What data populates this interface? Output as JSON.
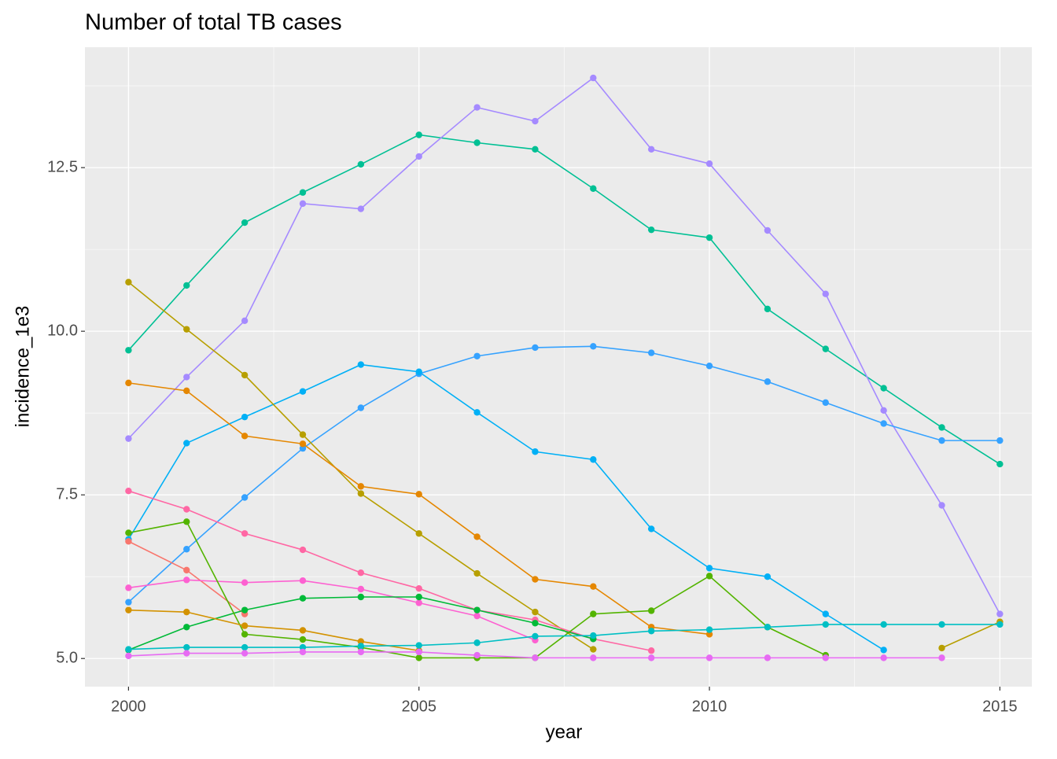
{
  "chart_data": {
    "type": "line",
    "title": "Number of total TB cases",
    "x_label": "year",
    "y_label": "incidence_1e3",
    "x": [
      2000,
      2001,
      2002,
      2003,
      2004,
      2005,
      2006,
      2007,
      2008,
      2009,
      2010,
      2011,
      2012,
      2013,
      2014,
      2015
    ],
    "xlim": [
      1999.25,
      2015.55
    ],
    "xticks": [
      2000,
      2005,
      2010,
      2015
    ],
    "ylim": [
      4.57,
      14.34
    ],
    "yticks": [
      {
        "value": 5,
        "label": "5.0"
      },
      7.5,
      {
        "value": 10,
        "label": "10.0"
      },
      12.5
    ],
    "grid": true,
    "series": [
      {
        "color": "#00C094",
        "values": [
          9.71,
          10.7,
          11.66,
          12.12,
          12.55,
          13.0,
          12.88,
          12.78,
          12.18,
          11.55,
          11.43,
          10.34,
          9.73,
          9.13,
          8.53,
          7.97
        ]
      },
      {
        "color": "#A58AFF",
        "values": [
          8.36,
          9.3,
          10.16,
          11.95,
          11.87,
          12.67,
          13.42,
          13.21,
          13.87,
          12.78,
          12.56,
          11.54,
          10.57,
          8.79,
          7.34,
          5.68
        ]
      },
      {
        "color": "#35A2FF",
        "values": [
          5.86,
          6.67,
          7.46,
          8.21,
          8.83,
          9.35,
          9.62,
          9.75,
          9.77,
          9.67,
          9.47,
          9.23,
          8.91,
          8.59,
          8.33,
          8.33
        ]
      },
      {
        "color": "#00B0F6",
        "values": [
          6.82,
          8.29,
          8.69,
          9.08,
          9.49,
          9.38,
          8.76,
          8.16,
          8.04,
          6.98,
          6.38,
          6.25,
          5.68,
          5.13,
          null,
          null
        ]
      },
      {
        "color": "#B79F00",
        "values": [
          10.75,
          10.03,
          9.33,
          8.42,
          7.52,
          6.91,
          6.3,
          5.71,
          5.14,
          null,
          null,
          null,
          null,
          null,
          5.16,
          5.56
        ]
      },
      {
        "color": "#E58700",
        "values": [
          9.21,
          9.09,
          8.4,
          8.28,
          7.63,
          7.51,
          6.86,
          6.21,
          6.1,
          5.48,
          5.37,
          null,
          null,
          null,
          null,
          null
        ]
      },
      {
        "color": "#FF67A4",
        "values": [
          7.56,
          7.28,
          6.91,
          6.66,
          6.31,
          6.07,
          5.74,
          5.59,
          5.3,
          5.12,
          null,
          null,
          null,
          null,
          null,
          null
        ]
      },
      {
        "color": "#F8766D",
        "values": [
          6.79,
          6.35,
          5.68,
          null,
          null,
          null,
          null,
          null,
          null,
          null,
          null,
          null,
          null,
          null,
          null,
          null
        ]
      },
      {
        "color": "#FD61D1",
        "values": [
          6.08,
          6.2,
          6.16,
          6.19,
          6.06,
          5.85,
          5.65,
          5.28,
          null,
          null,
          null,
          null,
          null,
          null,
          null,
          null
        ]
      },
      {
        "color": "#00BA38",
        "values": [
          5.13,
          5.48,
          5.74,
          5.92,
          5.94,
          5.94,
          5.74,
          5.54,
          5.3,
          null,
          null,
          null,
          null,
          null,
          null,
          null
        ]
      },
      {
        "color": "#53B400",
        "values": [
          6.92,
          7.09,
          5.37,
          5.29,
          5.17,
          5.01,
          5.01,
          5.01,
          5.68,
          5.73,
          6.26,
          5.48,
          5.05,
          null,
          null,
          null
        ]
      },
      {
        "color": "#D39200",
        "values": [
          5.74,
          5.71,
          5.5,
          5.43,
          5.26,
          5.12,
          null,
          null,
          null,
          null,
          null,
          null,
          null,
          null,
          null,
          null
        ]
      },
      {
        "color": "#00BFC4",
        "values": [
          5.14,
          5.17,
          5.17,
          5.17,
          5.19,
          5.2,
          5.24,
          5.34,
          5.35,
          5.42,
          5.44,
          5.48,
          5.52,
          5.52,
          5.52,
          5.52
        ]
      },
      {
        "color": "#E76BF3",
        "values": [
          5.04,
          5.08,
          5.08,
          5.1,
          5.1,
          5.1,
          5.05,
          5.01,
          5.01,
          5.01,
          5.01,
          5.01,
          5.01,
          5.01,
          5.01,
          null
        ]
      }
    ]
  }
}
